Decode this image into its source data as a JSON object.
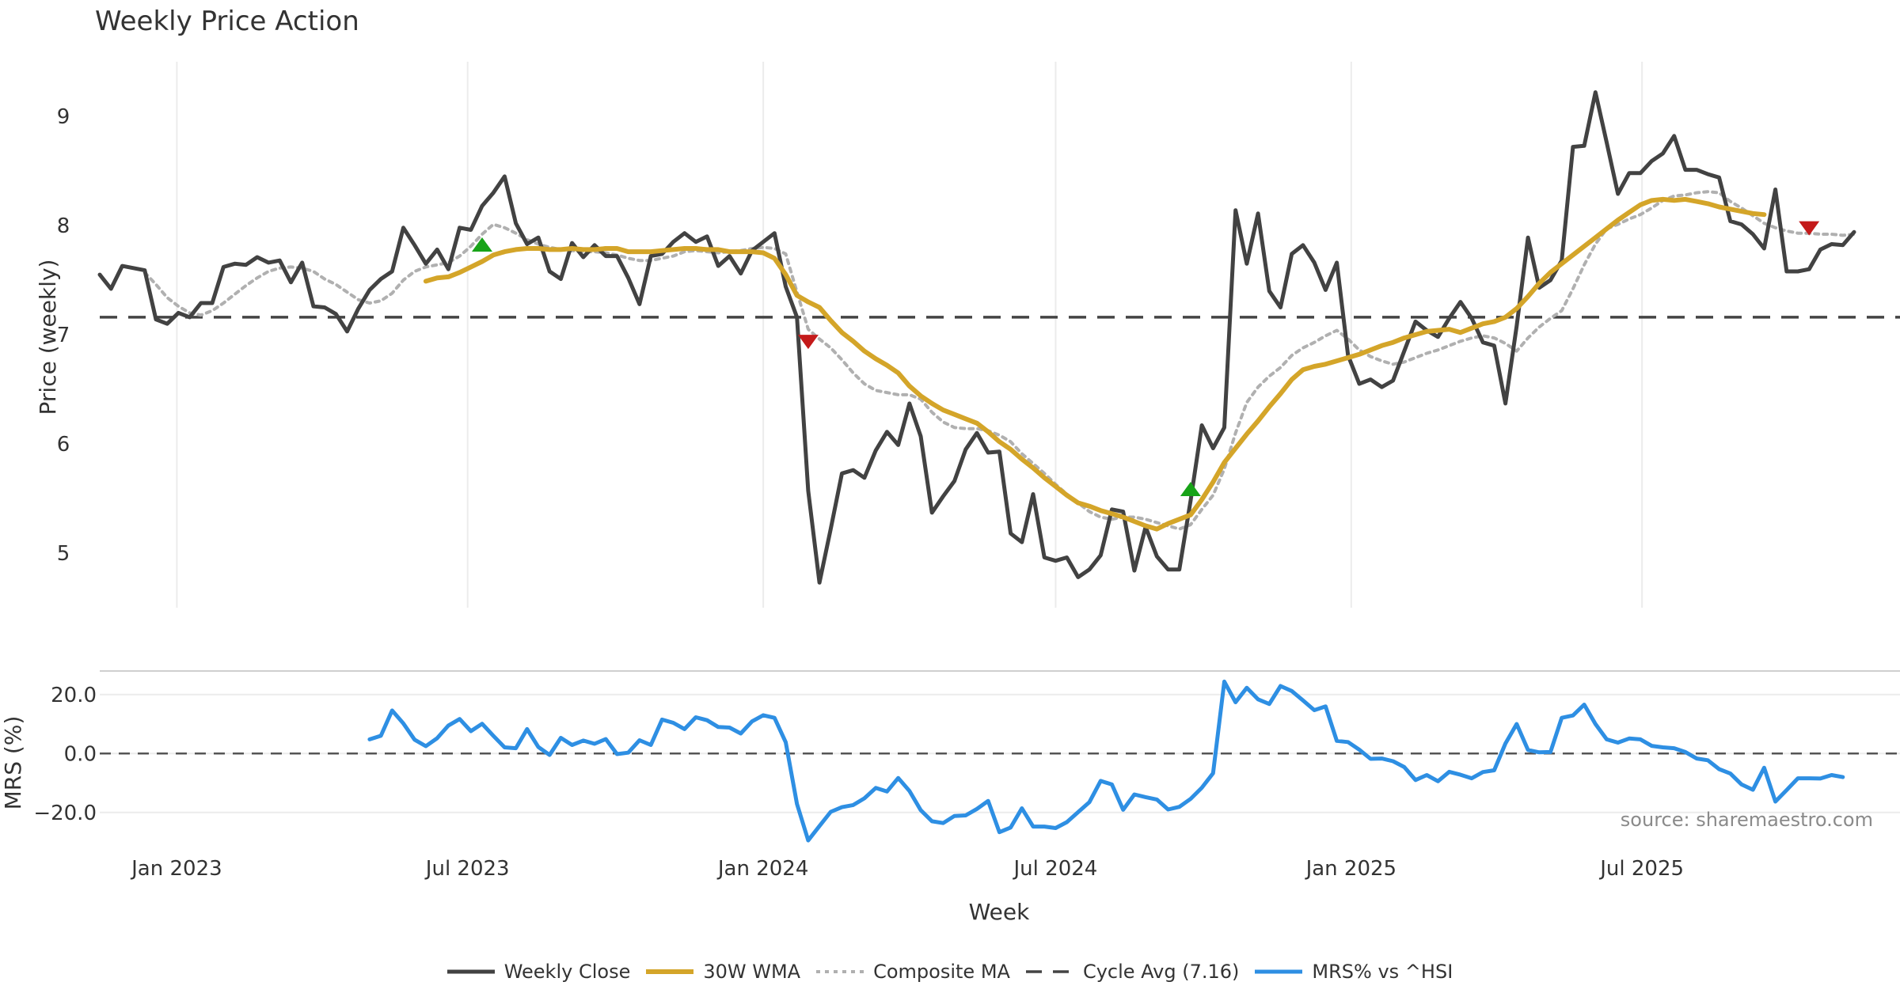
{
  "colors": {
    "weekly_close": "#424242",
    "wma": "#d4a529",
    "composite": "#b0b0b0",
    "cycle": "#444444",
    "mrs": "#2e8fe3",
    "buy": "#18a318",
    "sell": "#c41a1a",
    "grid": "#ececec",
    "text": "#333333",
    "source": "#8a8a8a"
  },
  "chart_data": {
    "type": "line",
    "title": "Weekly Price Action",
    "x_axis": {
      "label": "Week",
      "ticks": [
        "Jan 2023",
        "Jul 2023",
        "Jan 2024",
        "Jul 2024",
        "Jan 2025",
        "Jul 2025"
      ],
      "range": [
        "2022-11-14",
        "2025-11-10"
      ]
    },
    "price_panel": {
      "ylabel": "Price (weekly)",
      "ylim": [
        4.5,
        9.5
      ],
      "yticks": [
        "5",
        "6",
        "7",
        "8",
        "9"
      ],
      "cycle_avg": 7.16,
      "series": [
        {
          "name": "Weekly Close",
          "start_index": 0,
          "values": [
            7.55,
            7.42,
            7.63,
            7.61,
            7.59,
            7.14,
            7.1,
            7.2,
            7.16,
            7.29,
            7.29,
            7.62,
            7.65,
            7.64,
            7.71,
            7.66,
            7.68,
            7.48,
            7.66,
            7.26,
            7.25,
            7.19,
            7.03,
            7.24,
            7.41,
            7.51,
            7.58,
            7.98,
            7.82,
            7.65,
            7.78,
            7.6,
            7.98,
            7.96,
            8.18,
            8.3,
            8.45,
            8.02,
            7.83,
            7.89,
            7.58,
            7.51,
            7.84,
            7.71,
            7.82,
            7.72,
            7.72,
            7.52,
            7.28,
            7.72,
            7.74,
            7.85,
            7.93,
            7.85,
            7.9,
            7.63,
            7.72,
            7.56,
            7.77,
            7.85,
            7.93,
            7.44,
            7.16,
            5.57,
            4.73,
            5.22,
            5.73,
            5.76,
            5.69,
            5.94,
            6.11,
            5.99,
            6.37,
            6.07,
            5.37,
            5.52,
            5.66,
            5.95,
            6.1,
            5.92,
            5.93,
            5.18,
            5.1,
            5.54,
            4.96,
            4.93,
            4.96,
            4.78,
            4.85,
            4.98,
            5.4,
            5.38,
            4.84,
            5.24,
            4.97,
            4.85,
            4.85,
            5.48,
            6.17,
            5.96,
            6.15,
            8.14,
            7.65,
            8.11,
            7.4,
            7.25,
            7.74,
            7.82,
            7.66,
            7.41,
            7.66,
            6.81,
            6.55,
            6.59,
            6.52,
            6.58,
            6.85,
            7.12,
            7.04,
            6.98,
            7.15,
            7.3,
            7.15,
            6.93,
            6.9,
            6.37,
            7.08,
            7.89,
            7.43,
            7.5,
            7.68,
            8.72,
            8.73,
            9.22,
            8.76,
            8.29,
            8.48,
            8.48,
            8.59,
            8.66,
            8.82,
            8.51,
            8.51,
            8.47,
            8.44,
            8.04,
            8.01,
            7.92,
            7.79,
            8.33,
            7.58,
            7.58,
            7.6,
            7.78,
            7.83,
            7.82,
            7.94
          ]
        },
        {
          "name": "30W WMA",
          "start_index": 29,
          "values": [
            7.49,
            7.52,
            7.53,
            7.57,
            7.62,
            7.67,
            7.73,
            7.76,
            7.78,
            7.79,
            7.79,
            7.78,
            7.78,
            7.79,
            7.78,
            7.78,
            7.79,
            7.79,
            7.76,
            7.76,
            7.76,
            7.77,
            7.78,
            7.79,
            7.79,
            7.78,
            7.78,
            7.76,
            7.76,
            7.76,
            7.75,
            7.7,
            7.55,
            7.36,
            7.3,
            7.25,
            7.13,
            7.02,
            6.94,
            6.85,
            6.78,
            6.72,
            6.65,
            6.53,
            6.44,
            6.37,
            6.31,
            6.27,
            6.23,
            6.19,
            6.11,
            6.02,
            5.95,
            5.86,
            5.78,
            5.69,
            5.61,
            5.53,
            5.46,
            5.43,
            5.39,
            5.36,
            5.33,
            5.29,
            5.25,
            5.22,
            5.27,
            5.31,
            5.35,
            5.49,
            5.65,
            5.83,
            5.96,
            6.09,
            6.21,
            6.34,
            6.46,
            6.59,
            6.68,
            6.71,
            6.73,
            6.76,
            6.79,
            6.82,
            6.86,
            6.9,
            6.93,
            6.97,
            7.0,
            7.03,
            7.04,
            7.05,
            7.02,
            7.06,
            7.1,
            7.12,
            7.16,
            7.24,
            7.35,
            7.47,
            7.57,
            7.65,
            7.73,
            7.81,
            7.89,
            7.97,
            8.05,
            8.12,
            8.19,
            8.23,
            8.24,
            8.23,
            8.24,
            8.22,
            8.2,
            8.17,
            8.15,
            8.13,
            8.11,
            8.1
          ]
        },
        {
          "name": "Composite MA",
          "start_index": 4,
          "values": [
            7.57,
            7.46,
            7.34,
            7.26,
            7.2,
            7.18,
            7.22,
            7.29,
            7.37,
            7.45,
            7.52,
            7.58,
            7.61,
            7.62,
            7.61,
            7.58,
            7.51,
            7.46,
            7.39,
            7.32,
            7.29,
            7.31,
            7.38,
            7.5,
            7.58,
            7.62,
            7.64,
            7.66,
            7.72,
            7.81,
            7.92,
            8.01,
            7.98,
            7.93,
            7.87,
            7.83,
            7.8,
            7.78,
            7.77,
            7.76,
            7.76,
            7.75,
            7.73,
            7.7,
            7.68,
            7.68,
            7.7,
            7.72,
            7.76,
            7.77,
            7.76,
            7.75,
            7.76,
            7.77,
            7.79,
            7.8,
            7.79,
            7.74,
            7.39,
            7.05,
            6.96,
            6.88,
            6.77,
            6.65,
            6.55,
            6.49,
            6.47,
            6.45,
            6.45,
            6.41,
            6.29,
            6.2,
            6.15,
            6.14,
            6.14,
            6.12,
            6.08,
            6.02,
            5.91,
            5.82,
            5.73,
            5.63,
            5.54,
            5.46,
            5.38,
            5.33,
            5.31,
            5.33,
            5.33,
            5.31,
            5.28,
            5.25,
            5.22,
            5.26,
            5.4,
            5.53,
            5.77,
            6.1,
            6.38,
            6.52,
            6.62,
            6.7,
            6.81,
            6.88,
            6.93,
            6.99,
            7.04,
            6.96,
            6.86,
            6.8,
            6.76,
            6.73,
            6.75,
            6.79,
            6.83,
            6.86,
            6.9,
            6.94,
            6.97,
            6.99,
            6.97,
            6.92,
            6.85,
            6.97,
            7.07,
            7.15,
            7.22,
            7.42,
            7.64,
            7.83,
            7.97,
            8.01,
            8.06,
            8.1,
            8.16,
            8.23,
            8.27,
            8.28,
            8.3,
            8.31,
            8.3,
            8.22,
            8.16,
            8.09,
            8.02,
            7.98,
            7.95,
            7.93,
            7.93,
            7.92,
            7.92,
            7.91,
            7.92
          ]
        }
      ],
      "signals": [
        {
          "type": "buy",
          "index": 34,
          "value": 7.82
        },
        {
          "type": "sell",
          "index": 63,
          "value": 6.94
        },
        {
          "type": "buy",
          "index": 97,
          "value": 5.58
        },
        {
          "type": "sell",
          "index": 152,
          "value": 7.98
        }
      ]
    },
    "mrs_panel": {
      "ylabel": "MRS (%)",
      "ylim": [
        -30,
        28
      ],
      "yticks": [
        "20.0",
        "0.0",
        "−20.0"
      ],
      "zero_line": 0,
      "series": [
        {
          "name": "MRS% vs ^HSI",
          "start_index": 24,
          "values": [
            4.8,
            6.0,
            14.6,
            10.2,
            4.7,
            2.5,
            5.2,
            9.5,
            11.7,
            7.6,
            10.1,
            6.0,
            2.1,
            1.8,
            8.3,
            2.2,
            -0.5,
            5.3,
            2.9,
            4.4,
            3.3,
            4.9,
            -0.2,
            0.3,
            4.5,
            2.9,
            11.5,
            10.4,
            8.3,
            12.3,
            11.3,
            9.0,
            8.8,
            6.8,
            10.9,
            13.0,
            12.1,
            3.8,
            -17.1,
            -29.5,
            -24.6,
            -19.8,
            -18.2,
            -17.5,
            -15.2,
            -11.7,
            -12.9,
            -8.3,
            -12.7,
            -19.2,
            -23.0,
            -23.6,
            -21.2,
            -21.0,
            -18.8,
            -16.1,
            -26.7,
            -25.1,
            -18.6,
            -24.8,
            -24.8,
            -25.3,
            -23.3,
            -19.9,
            -16.5,
            -9.3,
            -10.5,
            -19.1,
            -13.9,
            -14.8,
            -15.6,
            -19.0,
            -18.1,
            -15.4,
            -11.6,
            -6.7,
            24.4,
            17.4,
            22.3,
            18.4,
            16.8,
            22.9,
            21.2,
            18.0,
            14.7,
            16.0,
            4.3,
            3.9,
            1.3,
            -1.8,
            -1.7,
            -2.6,
            -4.6,
            -9.0,
            -7.3,
            -9.4,
            -6.2,
            -7.2,
            -8.4,
            -6.3,
            -5.7,
            3.4,
            10.0,
            1.2,
            0.4,
            0.5,
            12.1,
            12.9,
            16.6,
            10.0,
            4.8,
            3.7,
            5.1,
            4.8,
            2.6,
            2.1,
            1.8,
            0.5,
            -1.7,
            -2.3,
            -5.3,
            -6.8,
            -10.5,
            -12.3,
            -4.8,
            -16.3,
            -12.4,
            -8.4,
            -8.4,
            -8.5,
            -7.3,
            -8.0
          ]
        }
      ]
    },
    "legend": [
      {
        "name": "Weekly Close",
        "style": "solid",
        "color_key": "weekly_close"
      },
      {
        "name": "30W WMA",
        "style": "solid",
        "color_key": "wma"
      },
      {
        "name": "Composite MA",
        "style": "dotted",
        "color_key": "composite"
      },
      {
        "name": "Cycle Avg (7.16)",
        "style": "dashed",
        "color_key": "cycle"
      },
      {
        "name": "MRS% vs ^HSI",
        "style": "solid",
        "color_key": "mrs"
      }
    ],
    "source": "source: sharemaestro.com"
  }
}
